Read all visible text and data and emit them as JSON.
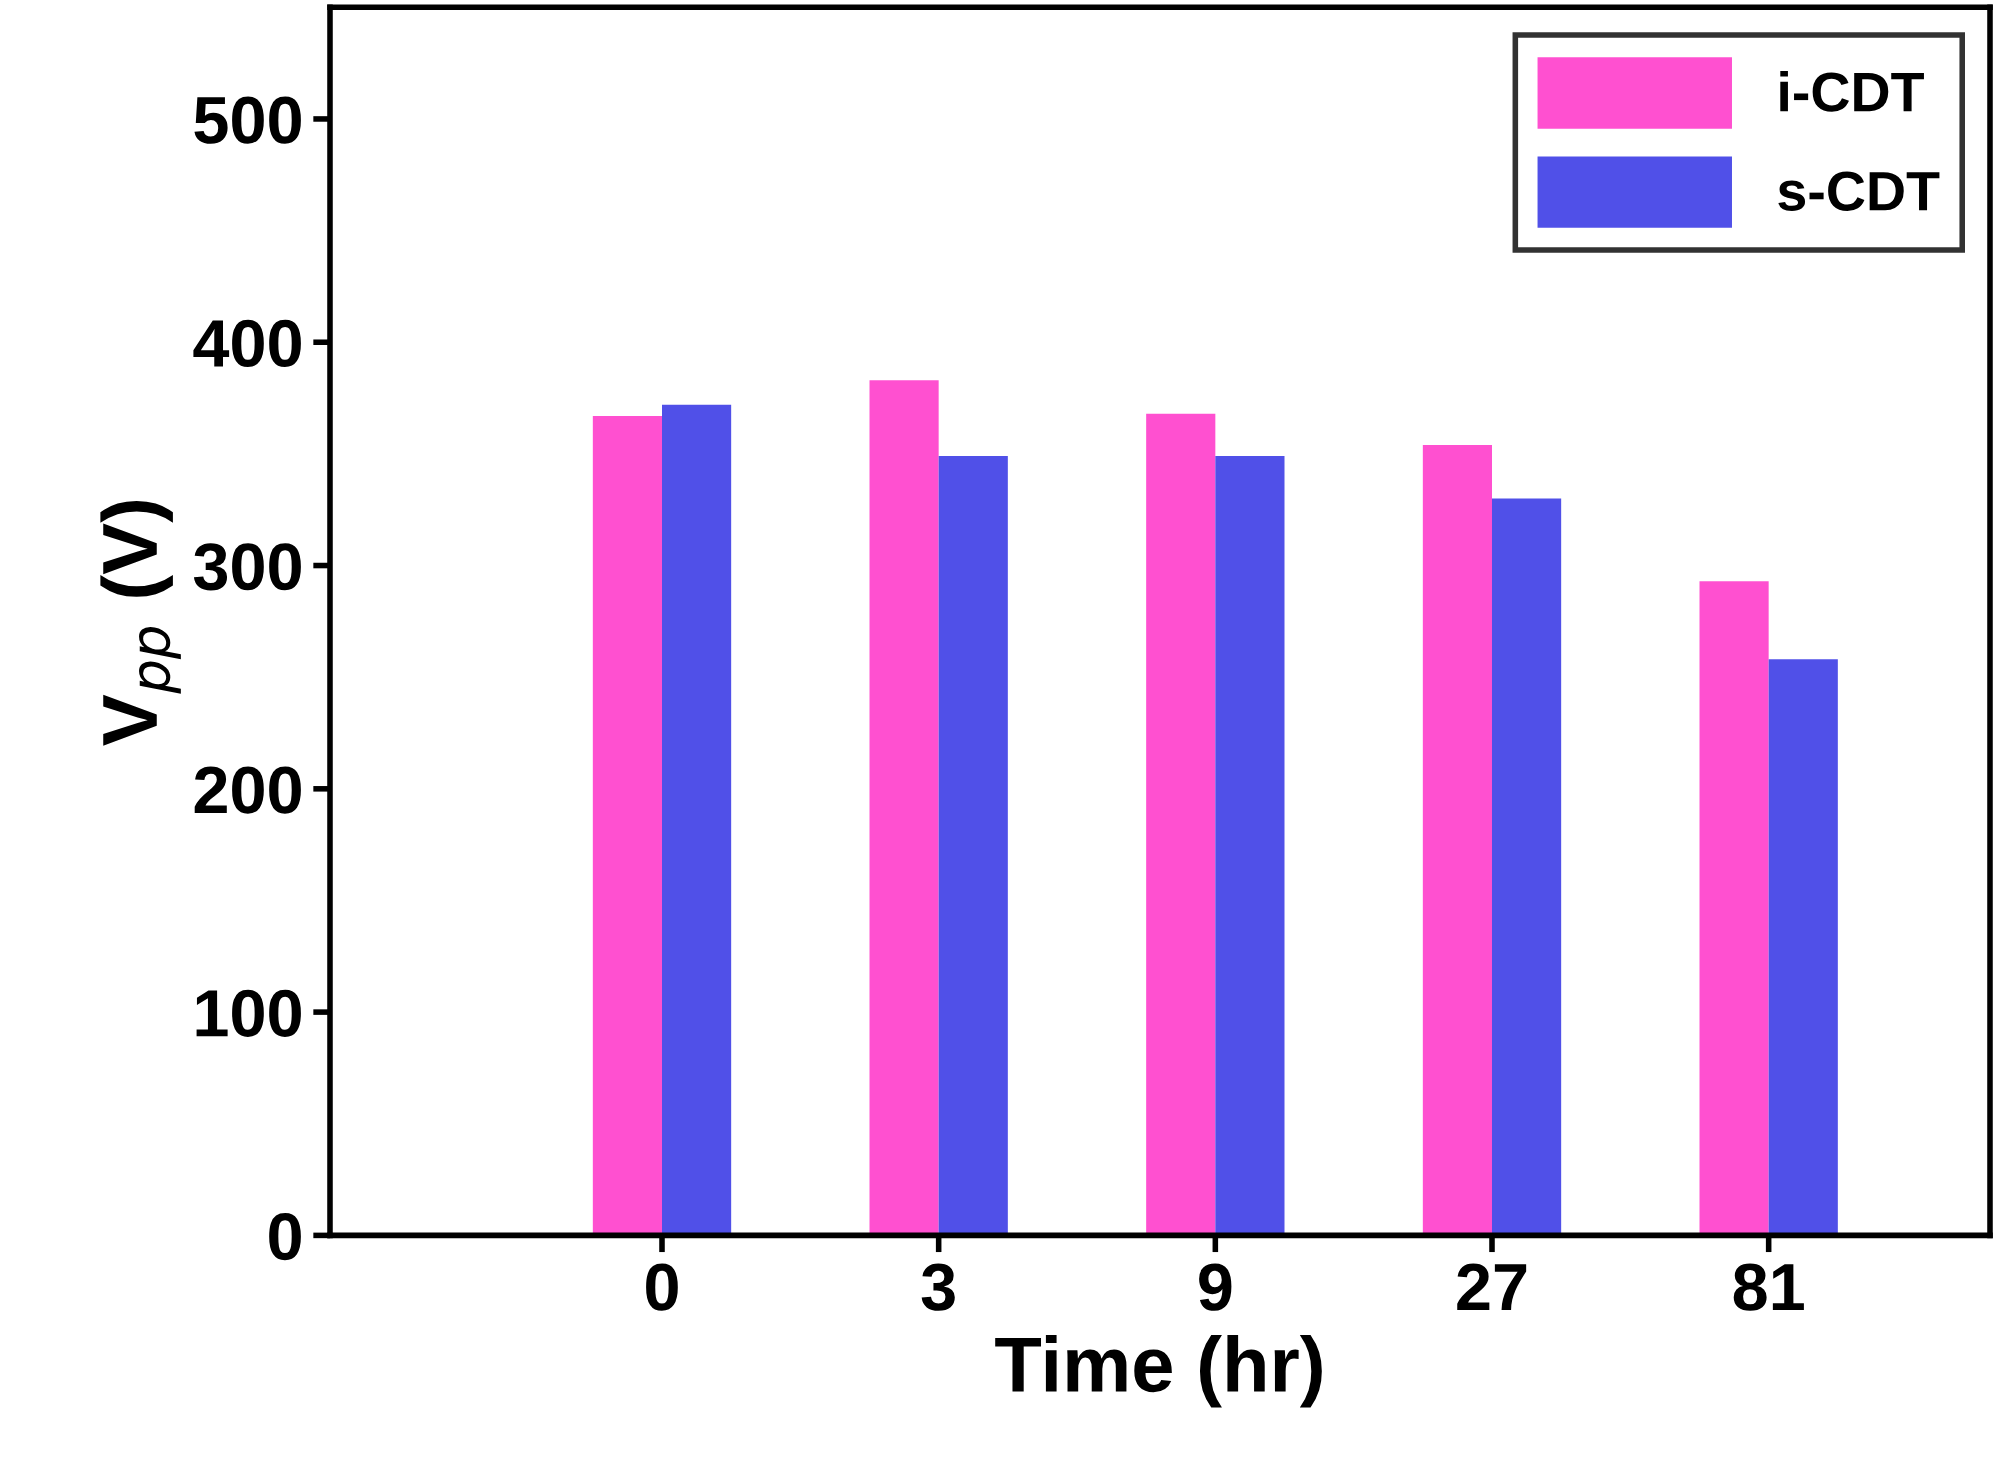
{
  "chart_data": {
    "type": "bar",
    "xlabel": "Time (hr)",
    "ylabel": "V$_{pp}$ (V)",
    "categories": [
      "0",
      "3",
      "9",
      "27",
      "81"
    ],
    "series": [
      {
        "name": "i-CDT",
        "color": "#ff50d0",
        "values": [
          367,
          383,
          368,
          354,
          293
        ]
      },
      {
        "name": "s-CDT",
        "color": "#5050e8",
        "values": [
          372,
          349,
          349,
          330,
          258
        ]
      }
    ],
    "ylim": [
      0,
      550
    ],
    "yticks": [
      0,
      100,
      200,
      300,
      400,
      500
    ],
    "grid": false,
    "legend": "top right"
  }
}
